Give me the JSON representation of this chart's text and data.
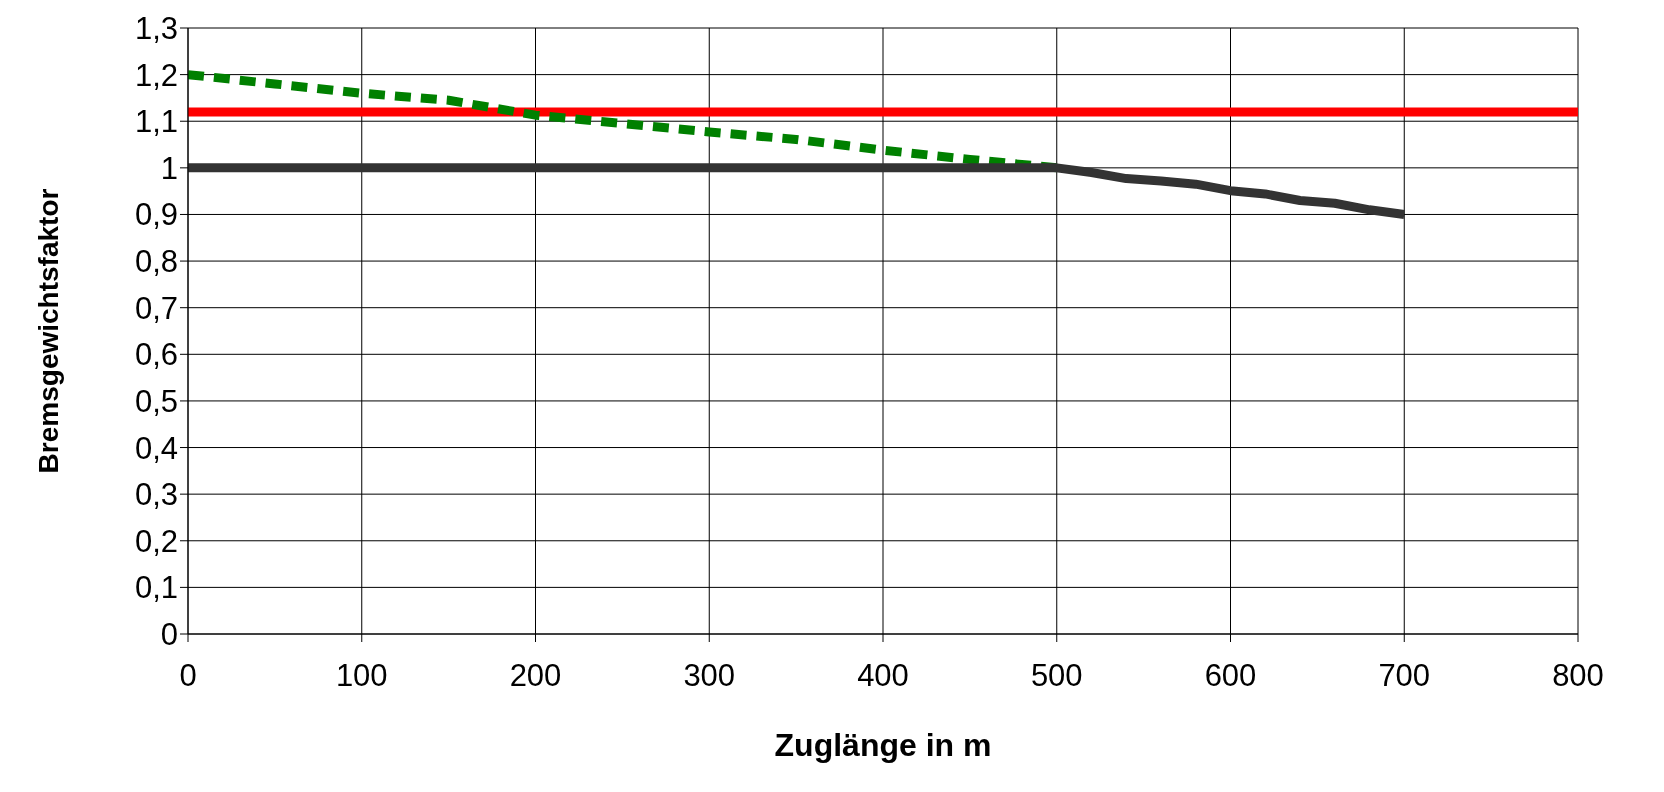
{
  "chart_data": {
    "type": "line",
    "xlabel": "Zuglänge in m",
    "ylabel": "Bremsgewichtsfaktor",
    "xlim": [
      0,
      800
    ],
    "xticks": [
      0,
      100,
      200,
      300,
      400,
      500,
      600,
      700,
      800
    ],
    "ylim": [
      0,
      1.3
    ],
    "yticks": [
      {
        "value": 0,
        "label": "0"
      },
      {
        "value": 0.1,
        "label": "0,1"
      },
      {
        "value": 0.2,
        "label": "0,2"
      },
      {
        "value": 0.3,
        "label": "0,3"
      },
      {
        "value": 0.4,
        "label": "0,4"
      },
      {
        "value": 0.5,
        "label": "0,5"
      },
      {
        "value": 0.6,
        "label": "0,6"
      },
      {
        "value": 0.7,
        "label": "0,7"
      },
      {
        "value": 0.8,
        "label": "0,8"
      },
      {
        "value": 0.9,
        "label": "0,9"
      },
      {
        "value": 1,
        "label": "1"
      },
      {
        "value": 1.1,
        "label": "1,1"
      },
      {
        "value": 1.2,
        "label": "1,2"
      },
      {
        "value": 1.3,
        "label": "1,3"
      }
    ],
    "grid": true,
    "legend": false,
    "marker": "none",
    "series": [
      {
        "color": "#008000",
        "line_style": "dashed",
        "x": [
          0,
          50,
          100,
          150,
          200,
          250,
          300,
          350,
          400,
          450,
          500
        ],
        "values": [
          1.2,
          1.18,
          1.16,
          1.145,
          1.113,
          1.095,
          1.077,
          1.061,
          1.038,
          1.018,
          1.0
        ]
      },
      {
        "color": "#333333",
        "line_style": "solid",
        "x": [
          0,
          100,
          200,
          300,
          400,
          500,
          520,
          540,
          560,
          580,
          600,
          620,
          640,
          660,
          680,
          700
        ],
        "values": [
          1,
          1,
          1,
          1,
          1,
          1,
          0.99,
          0.977,
          0.972,
          0.965,
          0.951,
          0.944,
          0.93,
          0.924,
          0.91,
          0.9
        ]
      }
    ],
    "ref_lines": [
      {
        "axis": "y",
        "value": 1.12,
        "color": "#ff0000",
        "line_style": "solid"
      }
    ]
  }
}
